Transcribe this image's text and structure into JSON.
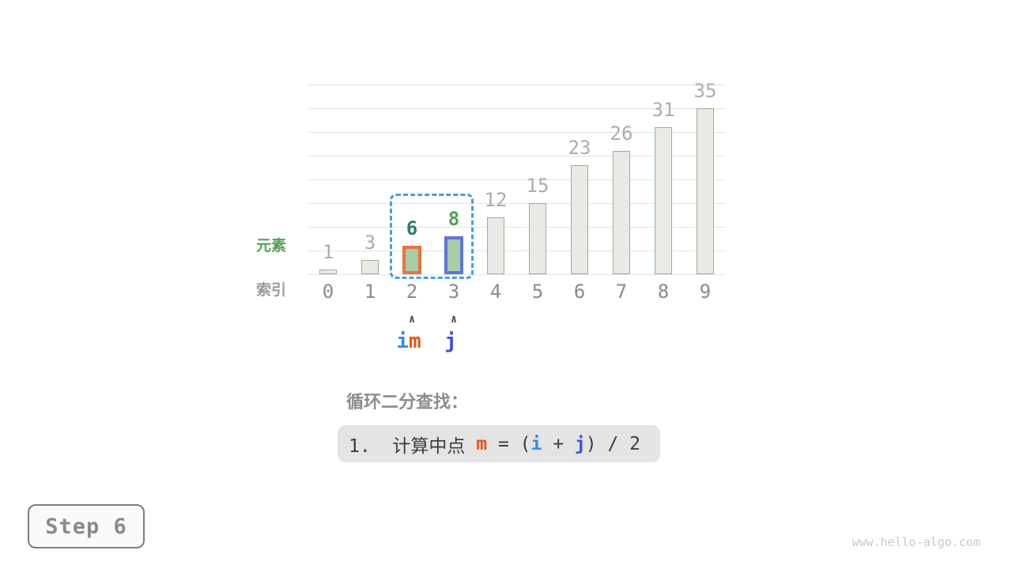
{
  "chart_data": {
    "type": "bar",
    "title": "",
    "xlabel": "索引",
    "ylabel": "元素",
    "categories": [
      "0",
      "1",
      "2",
      "3",
      "4",
      "5",
      "6",
      "7",
      "8",
      "9"
    ],
    "values": [
      1,
      3,
      6,
      8,
      12,
      15,
      23,
      26,
      31,
      35
    ],
    "ylim": [
      0,
      40
    ],
    "gridline_step": 5,
    "grid": true,
    "legend_position": "none",
    "bar_style": {
      "fill": "#e9eae6",
      "border": "#8cba85"
    },
    "value_label_color": "#acacac",
    "index_label_color": "#8a8a8a",
    "gridline_color": "#e4e4e4",
    "highlights": [
      {
        "index": 2,
        "border": "#ed7140",
        "fill": "#a8cca8",
        "value_color": "#2d7d6e",
        "value_bold": true
      },
      {
        "index": 3,
        "border": "#5f74d9",
        "fill": "#a8cca8",
        "value_color": "#52a055",
        "value_bold": true
      }
    ],
    "selection_box": {
      "from_index": 2,
      "to_index": 3,
      "color": "#41a0e8"
    },
    "pointers": [
      {
        "index": 2,
        "arrow": "∧",
        "segments": [
          {
            "text": "i",
            "color": "#2e8fe8"
          },
          {
            "text": "m",
            "color": "#e8540e"
          }
        ]
      },
      {
        "index": 3,
        "arrow": "∧",
        "segments": [
          {
            "text": "j",
            "color": "#3853e4"
          }
        ]
      }
    ],
    "arrow_color": "#4d4d4d"
  },
  "axis_labels": {
    "element": "元素",
    "element_color": "#52a352",
    "index": "索引",
    "index_color": "#9a9a9a"
  },
  "description": {
    "title": "循环二分查找：",
    "title_color": "#8c8c8c",
    "box_bg": "#e4e4e4",
    "formula_segments": [
      {
        "text": "1.  计算中点 ",
        "color": "#3c3c3c",
        "bold": false
      },
      {
        "text": "m",
        "color": "#e8540e",
        "bold": true
      },
      {
        "text": " = (",
        "color": "#3c3c3c",
        "bold": false
      },
      {
        "text": "i",
        "color": "#2e8fe8",
        "bold": true
      },
      {
        "text": " + ",
        "color": "#3c3c3c",
        "bold": false
      },
      {
        "text": "j",
        "color": "#3853e4",
        "bold": true
      },
      {
        "text": ") / 2",
        "color": "#3c3c3c",
        "bold": false
      }
    ]
  },
  "step_indicator": {
    "label": "Step 6",
    "text_color": "#8a8a8a",
    "border_color": "#7e7e7e",
    "bg": "#fafafa"
  },
  "watermark": {
    "text": "www.hello-algo.com",
    "color": "#c9c9c9"
  }
}
